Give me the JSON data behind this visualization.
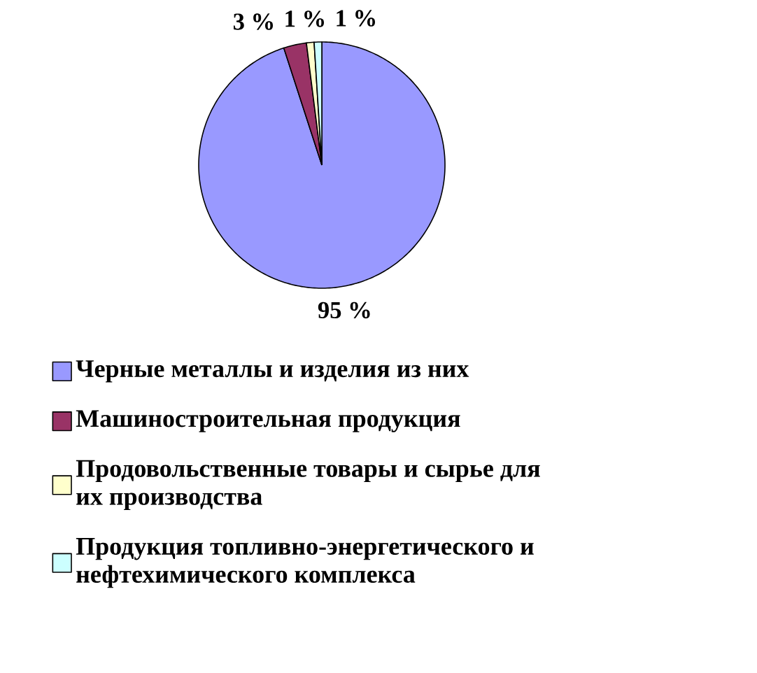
{
  "chart_data": {
    "type": "pie",
    "categories": [
      "Черные металлы и изделия из них",
      "Машиностроительная продукция",
      "Продовольственные товары и сырье для их производства",
      "Продукция топливно-энергетического и нефтехимического комплекса"
    ],
    "values": [
      95,
      3,
      1,
      1
    ],
    "colors": [
      "#9999ff",
      "#993366",
      "#ffffcc",
      "#ccffff"
    ],
    "value_labels": [
      "95 %",
      "3 %",
      "1 %",
      "1 %"
    ],
    "legend": "bottom"
  }
}
